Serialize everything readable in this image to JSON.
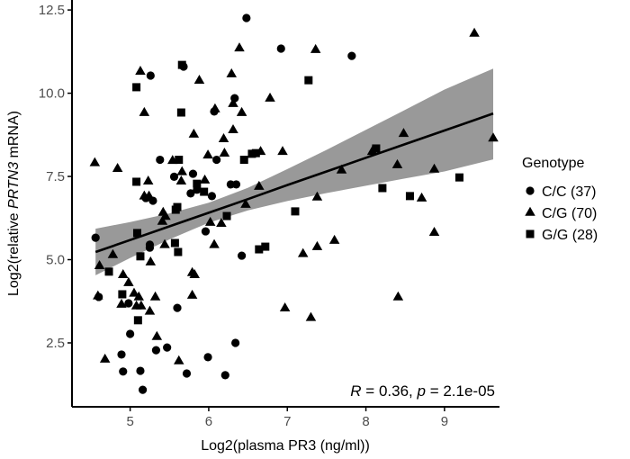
{
  "chart_data": {
    "type": "scatter",
    "xlabel": "Log2(plasma PR3 (ng/ml))",
    "ylabel_parts": [
      "Log2(relative ",
      "PRTN3",
      " mRNA)"
    ],
    "xlim": [
      4.26,
      9.7
    ],
    "ylim": [
      0.58,
      12.8
    ],
    "x_ticks": [
      5,
      6,
      7,
      8,
      9
    ],
    "y_ticks": [
      2.5,
      5.0,
      7.5,
      10.0,
      12.5
    ],
    "y_tick_labels": [
      "2.5",
      "5.0",
      "7.5",
      "10.0",
      "12.5"
    ],
    "grid": false,
    "annotation": {
      "r_label": "R",
      "r_value": " = 0.36, ",
      "p_label": "p",
      "p_value": " = 2.1e-05"
    },
    "legend": {
      "title": "Genotype",
      "placement": "right",
      "entries": [
        {
          "label": "C/C (37)",
          "shape": "circle"
        },
        {
          "label": "C/G (70)",
          "shape": "triangle"
        },
        {
          "label": "G/G (28)",
          "shape": "square"
        }
      ]
    },
    "marker_color": "#000000",
    "band_color": "#999999",
    "series": [
      {
        "name": "C/C (37)",
        "shape": "circle",
        "points": [
          [
            6.48,
            12.26
          ],
          [
            6.92,
            11.34
          ],
          [
            7.82,
            11.12
          ],
          [
            5.26,
            10.53
          ],
          [
            5.68,
            10.8
          ],
          [
            6.33,
            9.85
          ],
          [
            6.07,
            9.45
          ],
          [
            5.38,
            8.0
          ],
          [
            6.1,
            8.0
          ],
          [
            5.56,
            7.49
          ],
          [
            5.8,
            7.58
          ],
          [
            5.77,
            6.99
          ],
          [
            6.04,
            6.91
          ],
          [
            6.28,
            7.26
          ],
          [
            6.35,
            7.26
          ],
          [
            5.29,
            6.77
          ],
          [
            4.56,
            5.66
          ],
          [
            5.96,
            5.85
          ],
          [
            5.25,
            5.45
          ],
          [
            5.25,
            5.36
          ],
          [
            6.42,
            5.12
          ],
          [
            4.98,
            3.69
          ],
          [
            5.6,
            3.55
          ],
          [
            5.0,
            2.77
          ],
          [
            6.34,
            2.5
          ],
          [
            4.89,
            2.15
          ],
          [
            5.33,
            2.28
          ],
          [
            5.47,
            2.36
          ],
          [
            5.99,
            2.07
          ],
          [
            4.91,
            1.64
          ],
          [
            5.13,
            1.66
          ],
          [
            5.72,
            1.58
          ],
          [
            6.21,
            1.53
          ],
          [
            5.16,
            1.09
          ],
          [
            4.6,
            3.88
          ],
          [
            5.2,
            6.85
          ],
          [
            5.85,
            7.1
          ]
        ]
      },
      {
        "name": "C/G (70)",
        "shape": "triangle",
        "points": [
          [
            6.39,
            11.36
          ],
          [
            5.13,
            10.66
          ],
          [
            6.29,
            10.58
          ],
          [
            5.88,
            10.39
          ],
          [
            5.18,
            9.42
          ],
          [
            6.08,
            9.53
          ],
          [
            6.31,
            9.69
          ],
          [
            6.42,
            9.42
          ],
          [
            6.78,
            9.85
          ],
          [
            5.81,
            8.77
          ],
          [
            6.31,
            8.9
          ],
          [
            6.19,
            8.63
          ],
          [
            4.55,
            7.91
          ],
          [
            4.84,
            7.74
          ],
          [
            5.99,
            8.14
          ],
          [
            5.54,
            7.98
          ],
          [
            6.66,
            8.25
          ],
          [
            6.94,
            8.25
          ],
          [
            5.23,
            7.36
          ],
          [
            5.66,
            7.64
          ],
          [
            5.65,
            7.36
          ],
          [
            5.95,
            7.39
          ],
          [
            5.18,
            6.91
          ],
          [
            5.24,
            6.91
          ],
          [
            6.64,
            7.2
          ],
          [
            6.47,
            6.66
          ],
          [
            5.42,
            6.42
          ],
          [
            5.41,
            6.15
          ],
          [
            6.02,
            6.12
          ],
          [
            6.16,
            6.09
          ],
          [
            5.44,
            5.45
          ],
          [
            6.07,
            5.45
          ],
          [
            4.78,
            5.15
          ],
          [
            4.61,
            4.82
          ],
          [
            5.26,
            4.93
          ],
          [
            4.91,
            4.55
          ],
          [
            4.98,
            4.31
          ],
          [
            5.79,
            4.61
          ],
          [
            5.82,
            4.55
          ],
          [
            4.59,
            3.91
          ],
          [
            5.05,
            3.99
          ],
          [
            5.11,
            3.88
          ],
          [
            4.89,
            3.66
          ],
          [
            5.08,
            3.61
          ],
          [
            5.14,
            3.61
          ],
          [
            5.32,
            3.88
          ],
          [
            5.79,
            3.93
          ],
          [
            5.25,
            3.45
          ],
          [
            5.34,
            2.69
          ],
          [
            4.68,
            2.01
          ],
          [
            5.62,
            1.96
          ],
          [
            6.97,
            3.55
          ],
          [
            9.38,
            11.8
          ],
          [
            7.36,
            11.31
          ],
          [
            8.48,
            8.79
          ],
          [
            9.62,
            8.65
          ],
          [
            8.08,
            8.25
          ],
          [
            8.4,
            7.85
          ],
          [
            8.87,
            7.72
          ],
          [
            7.69,
            7.69
          ],
          [
            7.38,
            6.88
          ],
          [
            8.71,
            6.85
          ],
          [
            8.87,
            5.82
          ],
          [
            7.6,
            5.58
          ],
          [
            7.38,
            5.39
          ],
          [
            7.2,
            5.18
          ],
          [
            8.41,
            3.88
          ],
          [
            7.3,
            3.26
          ],
          [
            5.45,
            6.3
          ],
          [
            6.2,
            8.2
          ]
        ]
      },
      {
        "name": "G/G (28)",
        "shape": "square",
        "points": [
          [
            5.66,
            10.85
          ],
          [
            5.08,
            10.18
          ],
          [
            5.65,
            9.42
          ],
          [
            5.62,
            8.0
          ],
          [
            6.45,
            8.0
          ],
          [
            6.55,
            8.18
          ],
          [
            6.6,
            8.2
          ],
          [
            5.08,
            7.34
          ],
          [
            5.85,
            7.28
          ],
          [
            5.94,
            7.04
          ],
          [
            5.6,
            6.58
          ],
          [
            5.58,
            6.5
          ],
          [
            6.23,
            6.31
          ],
          [
            5.09,
            5.8
          ],
          [
            5.57,
            5.5
          ],
          [
            5.61,
            5.23
          ],
          [
            5.13,
            5.1
          ],
          [
            4.73,
            4.64
          ],
          [
            6.64,
            5.31
          ],
          [
            6.72,
            5.39
          ],
          [
            4.9,
            3.96
          ],
          [
            5.1,
            3.18
          ],
          [
            7.27,
            10.39
          ],
          [
            8.13,
            8.34
          ],
          [
            9.19,
            7.47
          ],
          [
            8.21,
            7.15
          ],
          [
            8.56,
            6.91
          ],
          [
            7.1,
            6.45
          ]
        ]
      }
    ],
    "fit": {
      "x": [
        4.56,
        5.0,
        5.5,
        6.0,
        6.5,
        7.0,
        7.5,
        8.0,
        8.5,
        9.0,
        9.62
      ],
      "y": [
        5.23,
        5.59,
        6.0,
        6.41,
        6.82,
        7.24,
        7.65,
        8.06,
        8.47,
        8.88,
        9.39
      ],
      "lower": [
        4.53,
        5.05,
        5.61,
        6.11,
        6.48,
        6.76,
        7.0,
        7.22,
        7.44,
        7.65,
        8.01
      ],
      "upper": [
        5.93,
        6.13,
        6.39,
        6.71,
        7.16,
        7.72,
        8.3,
        8.9,
        9.5,
        10.11,
        10.74
      ]
    }
  }
}
